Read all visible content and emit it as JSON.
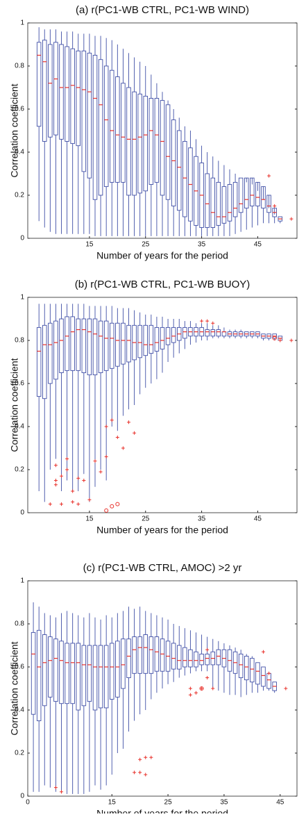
{
  "chart_data": [
    {
      "type": "box",
      "title": "(a) r(PC1-WB CTRL, PC1-WB WIND)",
      "xlabel": "Number of years for the period",
      "ylabel": "Correlation coefficient",
      "box_color": "#3f4ea6",
      "median_color": "#e8302a",
      "outlier_color": "#e8302a",
      "xlim": [
        4,
        52
      ],
      "xticks": [
        15,
        25,
        35,
        45
      ],
      "ylim": [
        0,
        1
      ],
      "yticks": [
        0,
        0.2,
        0.4,
        0.6,
        0.8,
        1
      ],
      "x": [
        6,
        7,
        8,
        9,
        10,
        11,
        12,
        13,
        14,
        15,
        16,
        17,
        18,
        19,
        20,
        21,
        22,
        23,
        24,
        25,
        26,
        27,
        28,
        29,
        30,
        31,
        32,
        33,
        34,
        35,
        36,
        37,
        38,
        39,
        40,
        41,
        42,
        43,
        44,
        45,
        46,
        47,
        48,
        49
      ],
      "whishi": [
        0.98,
        0.97,
        0.97,
        0.97,
        0.96,
        0.96,
        0.96,
        0.95,
        0.95,
        0.95,
        0.94,
        0.94,
        0.93,
        0.92,
        0.9,
        0.88,
        0.86,
        0.84,
        0.82,
        0.8,
        0.76,
        0.72,
        0.68,
        0.64,
        0.6,
        0.56,
        0.52,
        0.5,
        0.46,
        0.43,
        0.4,
        0.38,
        0.36,
        0.34,
        0.32,
        0.3,
        0.28,
        0.26,
        0.25,
        0.22,
        0.18,
        0.14,
        0.11,
        0.1
      ],
      "q3": [
        0.91,
        0.92,
        0.9,
        0.91,
        0.9,
        0.89,
        0.88,
        0.87,
        0.87,
        0.86,
        0.85,
        0.83,
        0.8,
        0.78,
        0.75,
        0.72,
        0.7,
        0.68,
        0.67,
        0.66,
        0.65,
        0.65,
        0.64,
        0.62,
        0.55,
        0.5,
        0.45,
        0.42,
        0.38,
        0.35,
        0.3,
        0.28,
        0.26,
        0.24,
        0.25,
        0.26,
        0.28,
        0.28,
        0.28,
        0.26,
        0.24,
        0.2,
        0.14,
        0.1
      ],
      "med": [
        0.85,
        0.82,
        0.72,
        0.74,
        0.7,
        0.7,
        0.71,
        0.7,
        0.69,
        0.68,
        0.65,
        0.62,
        0.55,
        0.5,
        0.48,
        0.47,
        0.46,
        0.46,
        0.47,
        0.48,
        0.5,
        0.48,
        0.45,
        0.38,
        0.36,
        0.33,
        0.28,
        0.25,
        0.22,
        0.2,
        0.16,
        0.12,
        0.1,
        0.1,
        0.12,
        0.14,
        0.16,
        0.18,
        0.2,
        0.19,
        0.18,
        0.15,
        0.12,
        0.09
      ],
      "q1": [
        0.52,
        0.45,
        0.47,
        0.48,
        0.46,
        0.45,
        0.44,
        0.43,
        0.31,
        0.28,
        0.18,
        0.2,
        0.24,
        0.26,
        0.26,
        0.26,
        0.2,
        0.2,
        0.21,
        0.22,
        0.25,
        0.26,
        0.2,
        0.18,
        0.15,
        0.13,
        0.1,
        0.08,
        0.06,
        0.05,
        0.05,
        0.05,
        0.06,
        0.07,
        0.08,
        0.1,
        0.12,
        0.14,
        0.15,
        0.15,
        0.14,
        0.12,
        0.1,
        0.08
      ],
      "whislo": [
        0.08,
        0.05,
        0.03,
        0.02,
        0.02,
        0.02,
        0.02,
        0.02,
        0.02,
        0.02,
        0.01,
        0.01,
        0.01,
        0.01,
        0.01,
        0.01,
        0.01,
        0.01,
        0.01,
        0.01,
        0.01,
        0.01,
        0.01,
        0.01,
        0.01,
        0.01,
        0.01,
        0.01,
        0.01,
        0.01,
        0.01,
        0.01,
        0.01,
        0.01,
        0.01,
        0.02,
        0.03,
        0.04,
        0.05,
        0.06,
        0.07,
        0.07,
        0.07,
        0.07
      ],
      "outliers": {
        "x": [
          47,
          48,
          51
        ],
        "y": [
          0.29,
          0.15,
          0.09
        ]
      },
      "circle_outliers": {
        "x": [],
        "y": []
      }
    },
    {
      "type": "box",
      "title": "(b) r(PC1-WB CTRL, PC1-WB BUOY)",
      "xlabel": "Number of years for the period",
      "ylabel": "Correlation coefficient",
      "box_color": "#3f4ea6",
      "median_color": "#e8302a",
      "outlier_color": "#e8302a",
      "xlim": [
        4,
        52
      ],
      "xticks": [
        15,
        25,
        35,
        45
      ],
      "ylim": [
        0,
        1
      ],
      "yticks": [
        0,
        0.2,
        0.4,
        0.6,
        0.8,
        1
      ],
      "x": [
        6,
        7,
        8,
        9,
        10,
        11,
        12,
        13,
        14,
        15,
        16,
        17,
        18,
        19,
        20,
        21,
        22,
        23,
        24,
        25,
        26,
        27,
        28,
        29,
        30,
        31,
        32,
        33,
        34,
        35,
        36,
        37,
        38,
        39,
        40,
        41,
        42,
        43,
        44,
        45,
        46,
        47,
        48,
        49
      ],
      "whishi": [
        0.97,
        0.97,
        0.97,
        0.97,
        0.97,
        0.97,
        0.97,
        0.97,
        0.97,
        0.96,
        0.96,
        0.96,
        0.96,
        0.96,
        0.95,
        0.95,
        0.95,
        0.94,
        0.93,
        0.92,
        0.92,
        0.91,
        0.91,
        0.9,
        0.9,
        0.9,
        0.89,
        0.89,
        0.88,
        0.88,
        0.88,
        0.87,
        0.87,
        0.86,
        0.85,
        0.85,
        0.85,
        0.84,
        0.84,
        0.84,
        0.83,
        0.83,
        0.83,
        0.82
      ],
      "q3": [
        0.86,
        0.87,
        0.88,
        0.89,
        0.9,
        0.91,
        0.91,
        0.9,
        0.9,
        0.9,
        0.9,
        0.89,
        0.89,
        0.88,
        0.88,
        0.88,
        0.87,
        0.87,
        0.87,
        0.87,
        0.87,
        0.86,
        0.86,
        0.86,
        0.86,
        0.86,
        0.86,
        0.86,
        0.86,
        0.86,
        0.85,
        0.85,
        0.85,
        0.84,
        0.84,
        0.84,
        0.84,
        0.84,
        0.84,
        0.84,
        0.83,
        0.83,
        0.83,
        0.82
      ],
      "med": [
        0.75,
        0.78,
        0.78,
        0.79,
        0.8,
        0.82,
        0.84,
        0.85,
        0.85,
        0.84,
        0.83,
        0.82,
        0.81,
        0.81,
        0.8,
        0.8,
        0.8,
        0.79,
        0.79,
        0.78,
        0.78,
        0.79,
        0.8,
        0.81,
        0.82,
        0.83,
        0.84,
        0.84,
        0.84,
        0.84,
        0.84,
        0.84,
        0.84,
        0.84,
        0.83,
        0.83,
        0.83,
        0.83,
        0.83,
        0.83,
        0.82,
        0.82,
        0.82,
        0.81
      ],
      "q1": [
        0.54,
        0.53,
        0.6,
        0.62,
        0.65,
        0.66,
        0.66,
        0.66,
        0.65,
        0.64,
        0.64,
        0.65,
        0.66,
        0.67,
        0.68,
        0.69,
        0.7,
        0.71,
        0.72,
        0.73,
        0.74,
        0.75,
        0.76,
        0.78,
        0.79,
        0.8,
        0.81,
        0.82,
        0.82,
        0.82,
        0.82,
        0.82,
        0.82,
        0.82,
        0.82,
        0.82,
        0.82,
        0.82,
        0.82,
        0.82,
        0.81,
        0.81,
        0.81,
        0.8
      ],
      "whislo": [
        0.1,
        0.05,
        0.2,
        0.25,
        0.1,
        0.15,
        0.1,
        0.1,
        0.18,
        0.05,
        0.12,
        0.2,
        0.15,
        0.4,
        0.38,
        0.45,
        0.48,
        0.5,
        0.55,
        0.58,
        0.6,
        0.62,
        0.65,
        0.7,
        0.72,
        0.74,
        0.76,
        0.78,
        0.79,
        0.8,
        0.8,
        0.81,
        0.81,
        0.81,
        0.81,
        0.81,
        0.81,
        0.81,
        0.81,
        0.81,
        0.8,
        0.8,
        0.8,
        0.8
      ],
      "outliers": {
        "x": [
          8,
          9,
          9,
          9,
          10,
          10,
          11,
          11,
          12,
          12,
          13,
          13,
          14,
          15,
          16,
          17,
          18,
          18,
          19,
          20,
          21,
          22,
          23,
          35,
          36,
          37,
          49,
          51
        ],
        "y": [
          0.04,
          0.22,
          0.15,
          0.13,
          0.04,
          0.17,
          0.25,
          0.2,
          0.1,
          0.05,
          0.16,
          0.04,
          0.15,
          0.06,
          0.24,
          0.19,
          0.4,
          0.26,
          0.43,
          0.35,
          0.3,
          0.42,
          0.37,
          0.89,
          0.89,
          0.88,
          0.8,
          0.8
        ]
      },
      "circle_outliers": {
        "x": [
          18,
          19,
          20,
          48
        ],
        "y": [
          0.01,
          0.03,
          0.04,
          0.81
        ]
      }
    },
    {
      "type": "box",
      "title": "(c) r(PC1-WB CTRL, AMOC) >2 yr",
      "xlabel": "Number of years for the period",
      "ylabel": "Correlation coefficient",
      "box_color": "#3f4ea6",
      "median_color": "#e8302a",
      "outlier_color": "#e8302a",
      "xlim": [
        0,
        48
      ],
      "xticks": [
        0,
        15,
        25,
        35,
        45
      ],
      "ylim": [
        0,
        1
      ],
      "yticks": [
        0,
        0.2,
        0.4,
        0.6,
        0.8,
        1
      ],
      "x": [
        1,
        2,
        3,
        4,
        5,
        6,
        7,
        8,
        9,
        10,
        11,
        12,
        13,
        14,
        15,
        16,
        17,
        18,
        19,
        20,
        21,
        22,
        23,
        24,
        25,
        26,
        27,
        28,
        29,
        30,
        31,
        32,
        33,
        34,
        35,
        36,
        37,
        38,
        39,
        40,
        41,
        42,
        43,
        44
      ],
      "whishi": [
        0.9,
        0.88,
        0.85,
        0.84,
        0.83,
        0.85,
        0.86,
        0.85,
        0.84,
        0.83,
        0.85,
        0.83,
        0.82,
        0.84,
        0.83,
        0.85,
        0.86,
        0.88,
        0.87,
        0.88,
        0.86,
        0.85,
        0.84,
        0.83,
        0.82,
        0.8,
        0.79,
        0.78,
        0.77,
        0.76,
        0.75,
        0.74,
        0.73,
        0.72,
        0.71,
        0.7,
        0.69,
        0.68,
        0.66,
        0.65,
        0.62,
        0.6,
        0.57,
        0.53
      ],
      "q3": [
        0.76,
        0.77,
        0.75,
        0.74,
        0.73,
        0.72,
        0.71,
        0.71,
        0.71,
        0.7,
        0.7,
        0.7,
        0.7,
        0.7,
        0.71,
        0.72,
        0.73,
        0.73,
        0.74,
        0.74,
        0.75,
        0.74,
        0.74,
        0.73,
        0.72,
        0.71,
        0.7,
        0.69,
        0.68,
        0.67,
        0.66,
        0.66,
        0.67,
        0.68,
        0.68,
        0.68,
        0.67,
        0.66,
        0.65,
        0.64,
        0.62,
        0.6,
        0.57,
        0.53
      ],
      "med": [
        0.66,
        0.6,
        0.62,
        0.63,
        0.64,
        0.63,
        0.62,
        0.62,
        0.62,
        0.61,
        0.61,
        0.6,
        0.6,
        0.6,
        0.6,
        0.6,
        0.61,
        0.65,
        0.68,
        0.69,
        0.69,
        0.68,
        0.67,
        0.66,
        0.65,
        0.64,
        0.63,
        0.63,
        0.63,
        0.63,
        0.63,
        0.64,
        0.64,
        0.65,
        0.64,
        0.63,
        0.62,
        0.61,
        0.6,
        0.59,
        0.58,
        0.56,
        0.54,
        0.51
      ],
      "q1": [
        0.38,
        0.35,
        0.42,
        0.46,
        0.44,
        0.43,
        0.43,
        0.43,
        0.4,
        0.42,
        0.44,
        0.4,
        0.41,
        0.41,
        0.45,
        0.46,
        0.5,
        0.55,
        0.57,
        0.57,
        0.57,
        0.57,
        0.58,
        0.58,
        0.58,
        0.59,
        0.59,
        0.6,
        0.6,
        0.6,
        0.61,
        0.61,
        0.61,
        0.61,
        0.6,
        0.58,
        0.57,
        0.55,
        0.54,
        0.53,
        0.52,
        0.51,
        0.5,
        0.49
      ],
      "whislo": [
        0.02,
        0.02,
        0.05,
        0.04,
        0.02,
        0.02,
        0.01,
        0.01,
        0.01,
        0.01,
        0.02,
        0.05,
        0.03,
        0.05,
        0.1,
        0.2,
        0.22,
        0.3,
        0.35,
        0.38,
        0.4,
        0.45,
        0.48,
        0.5,
        0.52,
        0.53,
        0.55,
        0.56,
        0.57,
        0.58,
        0.58,
        0.58,
        0.5,
        0.49,
        0.48,
        0.47,
        0.47,
        0.46,
        0.47,
        0.48,
        0.48,
        0.49,
        0.49,
        0.48
      ],
      "outliers": {
        "x": [
          5,
          6,
          19,
          20,
          20,
          21,
          21,
          22,
          29,
          29,
          30,
          31,
          32,
          32,
          33,
          42,
          43,
          46
        ],
        "y": [
          0.04,
          0.02,
          0.11,
          0.17,
          0.11,
          0.18,
          0.1,
          0.18,
          0.5,
          0.47,
          0.48,
          0.5,
          0.55,
          0.68,
          0.5,
          0.67,
          0.57,
          0.5
        ]
      },
      "circle_outliers": {
        "x": [
          31
        ],
        "y": [
          0.5
        ]
      }
    }
  ]
}
